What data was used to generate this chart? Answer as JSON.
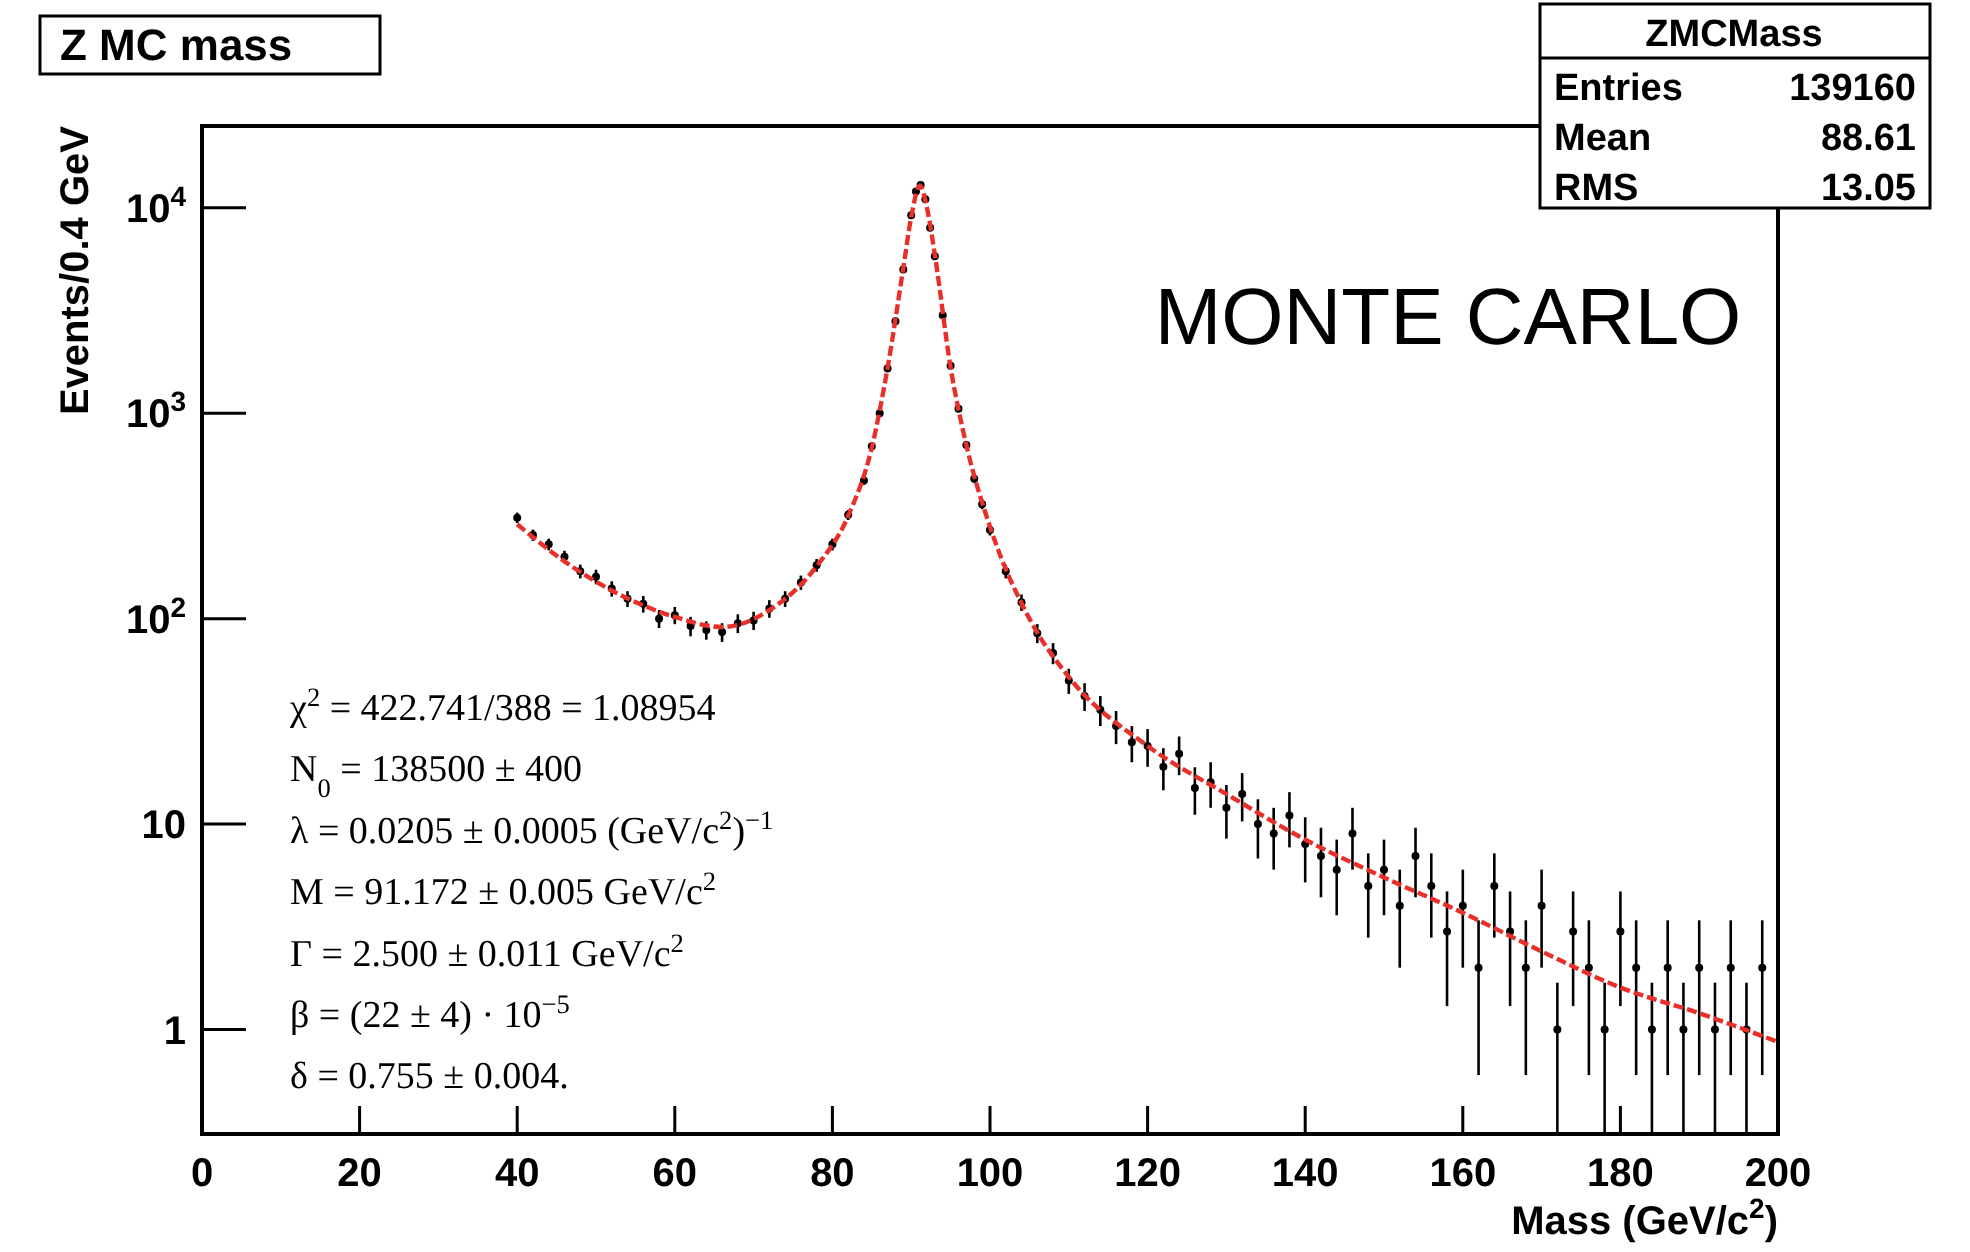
{
  "chart_data": {
    "type": "scatter",
    "title": "Z MC mass",
    "xlabel": "Mass (GeV/c$^{2}$)",
    "ylabel": "Events/0.4 GeV",
    "log": "y",
    "xlim": [
      0,
      200
    ],
    "ylim": [
      0.31,
      25000
    ],
    "xticks": [
      0,
      20,
      40,
      60,
      80,
      100,
      120,
      140,
      160,
      180,
      200
    ],
    "yticks": [
      {
        "value": 1,
        "label": "1"
      },
      {
        "value": 10,
        "label": "10"
      },
      {
        "value": 100,
        "label": "10$^{2}$"
      },
      {
        "value": 1000,
        "label": "10$^{3}$"
      },
      {
        "value": 10000,
        "label": "10$^{4}$"
      }
    ],
    "annotations": [
      "ZMCMass",
      "Entries",
      "139160",
      "Mean",
      "88.61",
      "RMS",
      "13.05",
      "MONTE CARLO",
      "χ$^{2}$ = 422.741/388 = 1.08954",
      "N$_{0}$ = 138500 ± 400",
      "λ = 0.0205 ± 0.0005 (GeV/c$^{2}$)$^{−1}$",
      "M = 91.172 ± 0.005 GeV/c$^{2}$",
      "Γ = 2.500 ± 0.011 GeV/c$^{2}$",
      "β = (22 ± 4) · 10$^{−5}$",
      "δ = 0.755 ± 0.004."
    ],
    "series": [
      {
        "color": "#000000",
        "marker": "circle",
        "x": [
          40,
          42,
          44,
          46,
          48,
          50,
          52,
          54,
          56,
          58,
          60,
          62,
          64,
          66,
          68,
          70,
          72,
          74,
          76,
          78,
          80,
          82,
          84,
          85,
          86,
          87,
          88,
          89,
          90,
          90.6,
          91.2,
          91.8,
          92.4,
          93,
          94,
          95,
          96,
          97,
          98,
          99,
          100,
          102,
          104,
          106,
          108,
          110,
          112,
          114,
          116,
          118,
          120,
          122,
          124,
          126,
          128,
          130,
          132,
          134,
          136,
          138,
          140,
          142,
          144,
          146,
          148,
          150,
          152,
          154,
          156,
          158,
          160,
          162,
          164,
          166,
          168,
          170,
          172,
          174,
          176,
          178,
          180,
          182,
          184,
          186,
          188,
          190,
          192,
          194,
          196,
          198
        ],
        "values": [
          310,
          255,
          230,
          200,
          170,
          160,
          140,
          125,
          118,
          100,
          104,
          92,
          88,
          86,
          95,
          98,
          112,
          125,
          150,
          182,
          230,
          320,
          470,
          690,
          1000,
          1650,
          2800,
          5000,
          9200,
          12000,
          12900,
          11000,
          8000,
          5800,
          3000,
          1700,
          1050,
          700,
          480,
          360,
          270,
          170,
          120,
          85,
          68,
          50,
          42,
          36,
          30,
          25,
          24,
          19,
          22,
          15,
          16,
          12,
          14,
          10,
          9,
          11,
          8,
          7,
          6,
          9,
          5,
          6,
          4,
          7,
          5,
          3,
          4,
          2,
          5,
          3,
          2,
          4,
          1,
          3,
          2,
          1,
          3,
          2,
          1,
          2,
          1,
          2,
          1,
          2,
          1,
          2
        ],
        "errors": [
          18,
          16,
          15,
          14,
          13,
          13,
          12,
          11,
          11,
          10,
          10,
          10,
          9,
          9,
          10,
          10,
          11,
          11,
          12,
          13,
          15,
          18,
          22,
          26,
          32,
          41,
          53,
          71,
          96,
          110,
          114,
          105,
          89,
          76,
          55,
          41,
          32,
          26,
          22,
          19,
          16,
          13,
          11,
          9,
          8,
          7,
          6.5,
          6,
          5.5,
          5,
          5,
          4.4,
          4.7,
          3.9,
          4,
          3.5,
          3.7,
          3.2,
          3,
          3.3,
          2.8,
          2.6,
          2.4,
          3,
          2.2,
          2.4,
          2,
          2.6,
          2.2,
          1.7,
          2,
          1.4,
          2.2,
          1.7,
          1.4,
          2,
          0.69,
          1.7,
          1.4,
          0.69,
          1.7,
          1.4,
          0.69,
          1.4,
          0.69,
          1.4,
          0.69,
          1.4,
          0.69,
          1.4
        ]
      },
      {
        "type": "line",
        "color": "#e8302a",
        "line_style": "dashed",
        "x": [
          40,
          46,
          52,
          60,
          66,
          72,
          78,
          82,
          85,
          87,
          89,
          90,
          91.1,
          92,
          93,
          95,
          97,
          100,
          105,
          110,
          120,
          130,
          140,
          150,
          160,
          170,
          180,
          190,
          200
        ],
        "values": [
          288,
          190,
          137,
          102,
          91,
          110,
          180,
          316,
          680,
          1660,
          5100,
          9000,
          12800,
          10000,
          5900,
          1670,
          700,
          280,
          100,
          52,
          24,
          14,
          8.4,
          5.5,
          3.7,
          2.4,
          1.6,
          1.2,
          0.87
        ]
      }
    ]
  }
}
